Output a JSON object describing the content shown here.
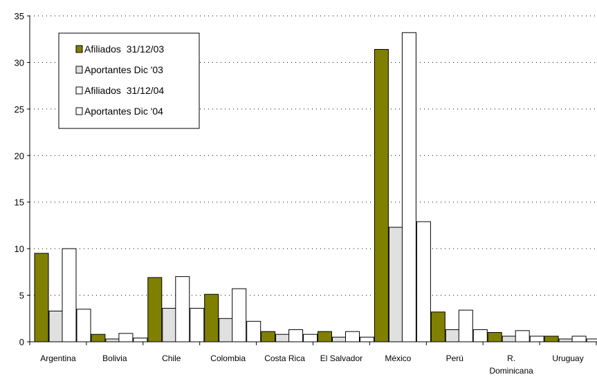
{
  "chart_data": {
    "type": "bar",
    "title": "",
    "xlabel": "",
    "ylabel": "",
    "ylim": [
      0,
      35
    ],
    "yticks": [
      0,
      5,
      10,
      15,
      20,
      25,
      30,
      35
    ],
    "grid": "dotted horizontal",
    "legend_position": "top-left",
    "categories": [
      [
        "Argentina"
      ],
      [
        "Bolivia"
      ],
      [
        "Chile"
      ],
      [
        "Colombia"
      ],
      [
        "Costa Rica"
      ],
      [
        "El Salvador"
      ],
      [
        "México"
      ],
      [
        "Perú"
      ],
      [
        "R.",
        "Dominicana"
      ],
      [
        "Uruguay"
      ]
    ],
    "series": [
      {
        "name": "Afiliados  31/12/03",
        "color": "#808000",
        "values": [
          9.5,
          0.8,
          6.9,
          5.1,
          1.1,
          1.1,
          31.4,
          3.2,
          1.0,
          0.6
        ]
      },
      {
        "name": "Aportantes Dic '03",
        "color": "#e0e0e0",
        "values": [
          3.3,
          0.3,
          3.6,
          2.5,
          0.8,
          0.5,
          12.3,
          1.3,
          0.6,
          0.3
        ]
      },
      {
        "name": "Afiliados  31/12/04",
        "color": "#ffffff",
        "values": [
          10.0,
          0.9,
          7.0,
          5.7,
          1.3,
          1.1,
          33.2,
          3.4,
          1.2,
          0.6
        ]
      },
      {
        "name": "Aportantes Dic '04",
        "color": "#ffffff",
        "values": [
          3.5,
          0.4,
          3.6,
          2.2,
          0.8,
          0.5,
          12.9,
          1.3,
          0.6,
          0.3
        ]
      }
    ]
  }
}
